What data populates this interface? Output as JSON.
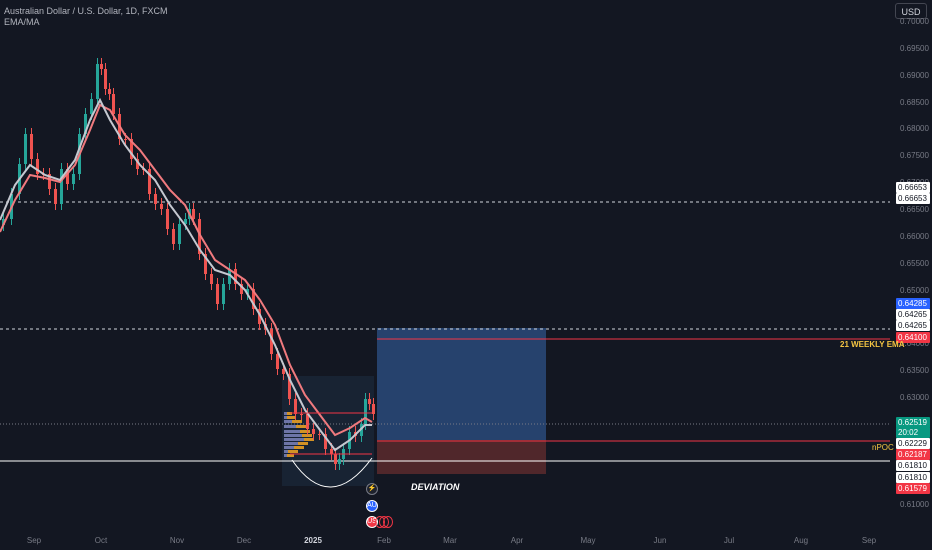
{
  "legend": {
    "symbol_line": "Australian Dollar / U.S. Dollar, 1D, FXCM",
    "indicator": "EMA/MA"
  },
  "currency_button": "USD",
  "price_axis": {
    "labels": [
      "0.70000",
      "0.69500",
      "0.69000",
      "0.68500",
      "0.68000",
      "0.67500",
      "0.67000",
      "0.66500",
      "0.66000",
      "0.65500",
      "0.65000",
      "0.64500",
      "0.64000",
      "0.63500",
      "0.63000",
      "0.62500",
      "0.62000",
      "0.61500",
      "0.61000"
    ]
  },
  "price_tags": [
    {
      "id": "hline_high",
      "text": "0.66653",
      "bg": "#ffffff",
      "fg": "#131722"
    },
    {
      "id": "hline_high_2",
      "text": "0.66653",
      "bg": "#ffffff",
      "fg": "#131722"
    },
    {
      "id": "target",
      "text": "0.64285",
      "bg": "#2962ff",
      "fg": "#ffffff"
    },
    {
      "id": "hline_mid",
      "text": "0.64265",
      "bg": "#ffffff",
      "fg": "#131722"
    },
    {
      "id": "hline_mid_2",
      "text": "0.64265",
      "bg": "#ffffff",
      "fg": "#131722"
    },
    {
      "id": "weekly_ema",
      "text": "0.64100",
      "bg": "#f23645",
      "fg": "#ffffff"
    },
    {
      "id": "last_price",
      "text": "0.62519",
      "bg": "#089981",
      "fg": "#ffffff"
    },
    {
      "id": "countdown",
      "text": "20:02",
      "bg": "#089981",
      "fg": "#ffffff"
    },
    {
      "id": "npoc",
      "text": "0.62229",
      "bg": "#ffffff",
      "fg": "#131722"
    },
    {
      "id": "stop",
      "text": "0.62187",
      "bg": "#f23645",
      "fg": "#ffffff"
    },
    {
      "id": "hline_low",
      "text": "0.61810",
      "bg": "#ffffff",
      "fg": "#131722"
    },
    {
      "id": "hline_low_2",
      "text": "0.61810",
      "bg": "#ffffff",
      "fg": "#131722"
    },
    {
      "id": "low_tag",
      "text": "0.61579",
      "bg": "#f23645",
      "fg": "#ffffff"
    }
  ],
  "time_axis": {
    "labels": [
      "Sep",
      "Oct",
      "Nov",
      "Dec",
      "2025",
      "Feb",
      "Mar",
      "Apr",
      "May",
      "Jun",
      "Jul",
      "Aug",
      "Sep"
    ]
  },
  "annotations": {
    "weekly_ema": "21 WEEKLY EMA",
    "npoc": "nPOC",
    "deviation": "DEVIATION"
  },
  "colors": {
    "background": "#131722",
    "bull": "#26a69a",
    "bear": "#ef5350",
    "ema_line": "#f07a7e",
    "ma_line": "#c5c8d0",
    "profit_zone": "#2a4a7a",
    "loss_zone": "#5c2a2d"
  },
  "event_icons": [
    {
      "name": "lightning-event-icon",
      "glyph": "⚡"
    },
    {
      "name": "au-flag-event-icon",
      "glyph": "AU"
    },
    {
      "name": "us-flag-event-icon",
      "glyph": "US"
    }
  ]
}
